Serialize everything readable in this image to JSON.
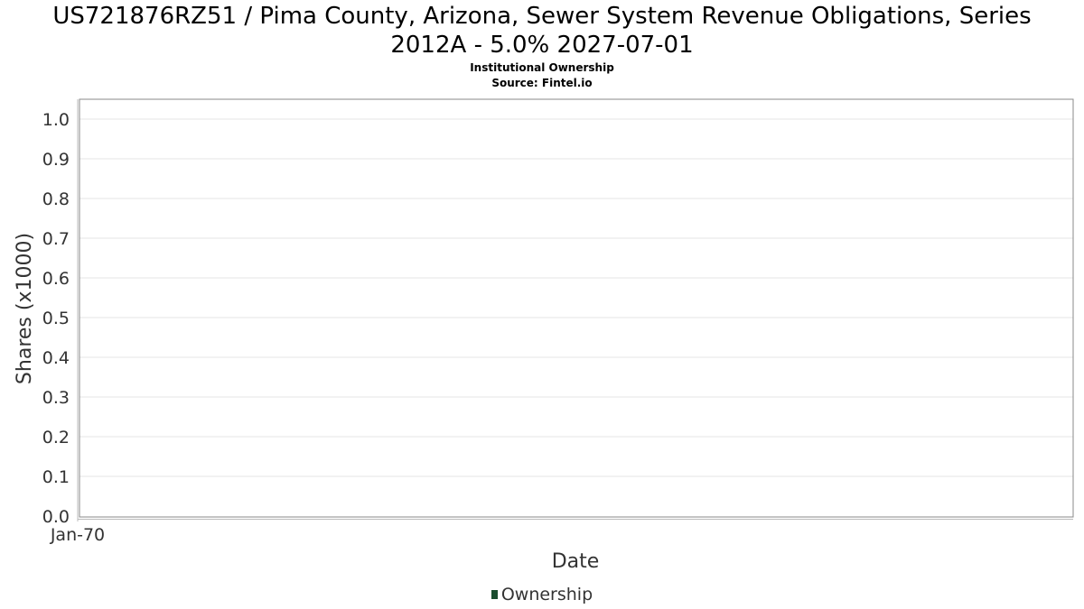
{
  "title_line1": "US721876RZ51 / Pima County, Arizona, Sewer System Revenue Obligations, Series",
  "title_line2": "2012A - 5.0% 2027-07-01",
  "subtitle_1": "Institutional Ownership",
  "subtitle_2": "Source: Fintel.io",
  "chart_data": {
    "type": "bar",
    "title": "US721876RZ51 / Pima County, Arizona, Sewer System Revenue Obligations, Series 2012A - 5.0% 2027-07-01",
    "subtitle": "Institutional Ownership / Source: Fintel.io",
    "xlabel": "Date",
    "ylabel": "Shares (x1000)",
    "x_ticks": [
      "Jan-70"
    ],
    "y_ticks": [
      "0.0",
      "0.1",
      "0.2",
      "0.3",
      "0.4",
      "0.5",
      "0.6",
      "0.7",
      "0.8",
      "0.9",
      "1.0"
    ],
    "ylim": [
      0,
      1.05
    ],
    "grid": true,
    "legend_position": "bottom",
    "series": [
      {
        "name": "Ownership",
        "color": "#1a4d2e",
        "values": []
      }
    ]
  }
}
